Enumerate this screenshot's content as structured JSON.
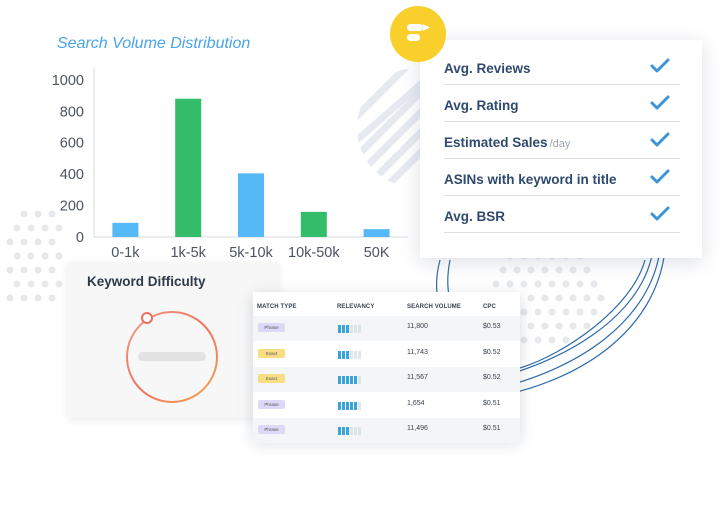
{
  "chart_data": {
    "type": "bar",
    "title": "Search Volume Distribution",
    "categories": [
      "0-1k",
      "1k-5k",
      "5k-10k",
      "10k-50k",
      "50K"
    ],
    "values": [
      90,
      880,
      405,
      160,
      50
    ],
    "bar_colors": [
      "#55b8f7",
      "#33bd6b",
      "#55b8f7",
      "#33bd6b",
      "#55b8f7"
    ],
    "yticks": [
      "0",
      "200",
      "400",
      "600",
      "800",
      "1000"
    ],
    "ylim": [
      0,
      1050
    ]
  },
  "checklist": {
    "items": [
      {
        "label": "Avg. Reviews",
        "unit": ""
      },
      {
        "label": "Avg. Rating",
        "unit": ""
      },
      {
        "label": "Estimated Sales",
        "unit": "/day"
      },
      {
        "label": "ASINs with keyword in title",
        "unit": ""
      },
      {
        "label": "Avg. BSR",
        "unit": ""
      }
    ],
    "check_color": "#3d94d6"
  },
  "keyword_difficulty": {
    "title": "Keyword Difficulty"
  },
  "table": {
    "headers": {
      "match_type": "MATCH TYPE",
      "relevancy": "RELEVANCY",
      "search_volume": "SEARCH VOLUME",
      "cpc": "CPC"
    },
    "rows": [
      {
        "match_type": "Phrase",
        "relevancy": 3,
        "volume": "11,800",
        "cpc": "$0.53"
      },
      {
        "match_type": "Exact",
        "relevancy": 3,
        "volume": "11,743",
        "cpc": "$0.52"
      },
      {
        "match_type": "Exact",
        "relevancy": 5,
        "volume": "11,567",
        "cpc": "$0.52"
      },
      {
        "match_type": "Phrase",
        "relevancy": 5,
        "volume": "1,654",
        "cpc": "$0.51"
      },
      {
        "match_type": "Phrase",
        "relevancy": 3,
        "volume": "11,496",
        "cpc": "$0.51"
      }
    ]
  },
  "colors": {
    "accent_blue": "#55b8f7",
    "accent_green": "#33bd6b",
    "logo_yellow": "#f9cf2b",
    "title_blue": "#4aa3e8"
  }
}
